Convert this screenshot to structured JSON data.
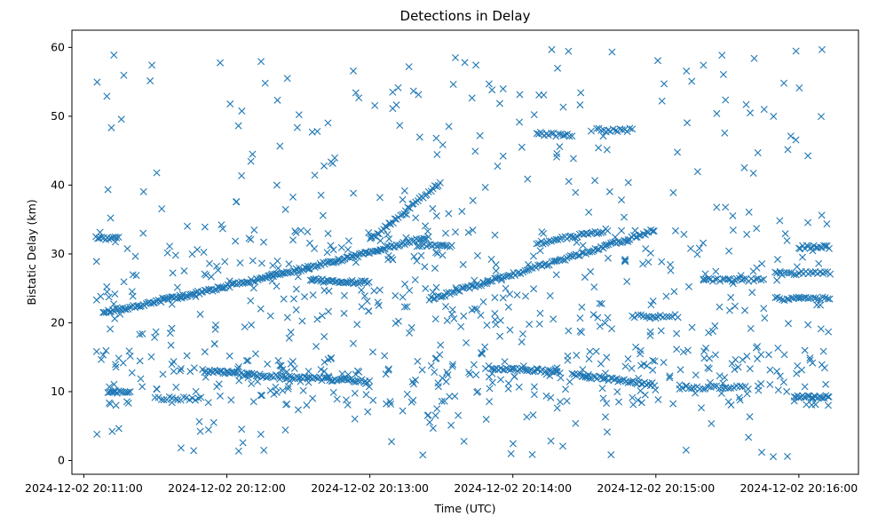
{
  "chart_data": {
    "type": "scatter",
    "title": "Detections in Delay",
    "xlabel": "Time (UTC)",
    "ylabel": "Bistatic Delay (km)",
    "marker": "x",
    "color": "#1f77b4",
    "xlim": [
      "2024-12-02 20:10:55",
      "2024-12-02 20:16:25"
    ],
    "ylim": [
      -2,
      62.5
    ],
    "x_ticks": [
      {
        "t": "2024-12-02 20:11:00",
        "label": "2024-12-02 20:11:00"
      },
      {
        "t": "2024-12-02 20:12:00",
        "label": "2024-12-02 20:12:00"
      },
      {
        "t": "2024-12-02 20:13:00",
        "label": "2024-12-02 20:13:00"
      },
      {
        "t": "2024-12-02 20:14:00",
        "label": "2024-12-02 20:14:00"
      },
      {
        "t": "2024-12-02 20:15:00",
        "label": "2024-12-02 20:15:00"
      },
      {
        "t": "2024-12-02 20:16:00",
        "label": "2024-12-02 20:16:00"
      }
    ],
    "y_ticks": [
      0,
      10,
      20,
      30,
      40,
      50,
      60
    ],
    "grid": false,
    "legend": "none",
    "tracks": [
      {
        "t_start": "2024-12-02 20:11:08",
        "t_end": "2024-12-02 20:13:25",
        "y_start": 21.5,
        "y_end": 32.5,
        "spacing_s": 0.7,
        "curve": 0.6
      },
      {
        "t_start": "2024-12-02 20:13:25",
        "t_end": "2024-12-02 20:15:00",
        "y_start": 23.5,
        "y_end": 33.5,
        "spacing_s": 0.8,
        "curve": 0.3
      },
      {
        "t_start": "2024-12-02 20:11:50",
        "t_end": "2024-12-02 20:12:15",
        "y_start": 13.0,
        "y_end": 12.3,
        "spacing_s": 0.7,
        "curve": 0
      },
      {
        "t_start": "2024-12-02 20:12:15",
        "t_end": "2024-12-02 20:13:00",
        "y_start": 12.3,
        "y_end": 11.5,
        "spacing_s": 0.8,
        "curve": 0
      },
      {
        "t_start": "2024-12-02 20:13:50",
        "t_end": "2024-12-02 20:14:20",
        "y_start": 13.5,
        "y_end": 12.8,
        "spacing_s": 0.8,
        "curve": 0
      },
      {
        "t_start": "2024-12-02 20:14:25",
        "t_end": "2024-12-02 20:15:00",
        "y_start": 12.5,
        "y_end": 11.0,
        "spacing_s": 0.8,
        "curve": 0
      },
      {
        "t_start": "2024-12-02 20:12:35",
        "t_end": "2024-12-02 20:13:00",
        "y_start": 26.2,
        "y_end": 25.8,
        "spacing_s": 0.7,
        "curve": 0
      },
      {
        "t_start": "2024-12-02 20:13:00",
        "t_end": "2024-12-02 20:13:30",
        "y_start": 32.0,
        "y_end": 40.5,
        "spacing_s": 0.8,
        "curve": 0
      },
      {
        "t_start": "2024-12-02 20:13:20",
        "t_end": "2024-12-02 20:13:35",
        "y_start": 31.2,
        "y_end": 31.2,
        "spacing_s": 0.9,
        "curve": 0
      },
      {
        "t_start": "2024-12-02 20:14:10",
        "t_end": "2024-12-02 20:14:40",
        "y_start": 31.5,
        "y_end": 33.5,
        "spacing_s": 0.9,
        "curve": 0
      },
      {
        "t_start": "2024-12-02 20:14:10",
        "t_end": "2024-12-02 20:14:25",
        "y_start": 47.3,
        "y_end": 47.3,
        "spacing_s": 1.0,
        "curve": 0
      },
      {
        "t_start": "2024-12-02 20:14:35",
        "t_end": "2024-12-02 20:14:50",
        "y_start": 48.0,
        "y_end": 48.0,
        "spacing_s": 1.0,
        "curve": 0
      },
      {
        "t_start": "2024-12-02 20:14:50",
        "t_end": "2024-12-02 20:15:10",
        "y_start": 21.0,
        "y_end": 21.0,
        "spacing_s": 1.2,
        "curve": 0
      },
      {
        "t_start": "2024-12-02 20:15:20",
        "t_end": "2024-12-02 20:15:45",
        "y_start": 26.2,
        "y_end": 26.2,
        "spacing_s": 1.0,
        "curve": 0
      },
      {
        "t_start": "2024-12-02 20:15:10",
        "t_end": "2024-12-02 20:15:40",
        "y_start": 10.6,
        "y_end": 10.6,
        "spacing_s": 1.2,
        "curve": 0
      },
      {
        "t_start": "2024-12-02 20:15:50",
        "t_end": "2024-12-02 20:16:13",
        "y_start": 27.2,
        "y_end": 27.2,
        "spacing_s": 1.0,
        "curve": 0
      },
      {
        "t_start": "2024-12-02 20:15:50",
        "t_end": "2024-12-02 20:16:13",
        "y_start": 23.5,
        "y_end": 23.5,
        "spacing_s": 1.0,
        "curve": 0
      },
      {
        "t_start": "2024-12-02 20:16:00",
        "t_end": "2024-12-02 20:16:13",
        "y_start": 31.0,
        "y_end": 31.0,
        "spacing_s": 0.8,
        "curve": 0
      },
      {
        "t_start": "2024-12-02 20:15:58",
        "t_end": "2024-12-02 20:16:13",
        "y_start": 9.2,
        "y_end": 9.2,
        "spacing_s": 0.7,
        "curve": 0
      },
      {
        "t_start": "2024-12-02 20:11:05",
        "t_end": "2024-12-02 20:11:15",
        "y_start": 32.3,
        "y_end": 32.3,
        "spacing_s": 0.8,
        "curve": 0
      },
      {
        "t_start": "2024-12-02 20:11:10",
        "t_end": "2024-12-02 20:11:20",
        "y_start": 10.0,
        "y_end": 10.0,
        "spacing_s": 0.8,
        "curve": 0
      },
      {
        "t_start": "2024-12-02 20:11:30",
        "t_end": "2024-12-02 20:11:50",
        "y_start": 9.0,
        "y_end": 9.0,
        "spacing_s": 1.2,
        "curve": 0
      }
    ],
    "scatter_seed": 20241202,
    "scatter_count": 820,
    "scatter_t_range": [
      "2024-12-02 20:11:04",
      "2024-12-02 20:16:13"
    ],
    "scatter_y_range": [
      0.5,
      60
    ]
  }
}
